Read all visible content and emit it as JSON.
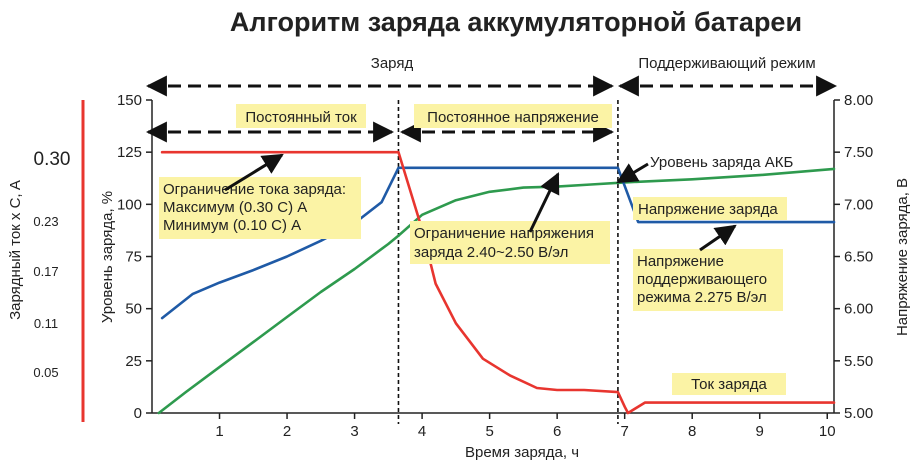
{
  "chart_data": {
    "type": "line",
    "title": "Алгоритм заряда аккумуляторной батареи",
    "xlabel": "Время заряда, ч",
    "ylabel_left": "Уровень заряда, %",
    "ylabel_far_left": "Зарядный ток x C, A",
    "ylabel_right": "Напряжение заряда, В",
    "xlim": [
      0,
      10.1
    ],
    "xticks": [
      1,
      2,
      3,
      4,
      5,
      6,
      7,
      8,
      9,
      10
    ],
    "ylim_left": [
      0,
      150
    ],
    "yticks_left": [
      0,
      25,
      50,
      75,
      100,
      125,
      150
    ],
    "ylim_right": [
      5.0,
      8.0
    ],
    "yticks_right": [
      "5.00",
      "5.50",
      "6.00",
      "6.50",
      "7.00",
      "7.50",
      "8.00"
    ],
    "current_scale_ticks": [
      "0.30",
      "0.23",
      "0.17",
      "0.11",
      "0.05"
    ],
    "current_scale_values": [
      0.3,
      0.23,
      0.17,
      0.11,
      0.05
    ],
    "phase_boundaries_h": [
      3.65,
      6.9
    ],
    "phases": {
      "charge": "Заряд",
      "float": "Поддерживающий режим",
      "constant_current": "Постоянный ток",
      "constant_voltage": "Постоянное напряжение"
    },
    "annotations": {
      "current_limit": [
        "Ограничение тока заряда:",
        "Максимум (0.30 C) A",
        "Минимум (0.10 C) A"
      ],
      "voltage_limit": [
        "Ограничение напряжения",
        "заряда 2.40~2.50 В/эл"
      ],
      "battery_level": "Уровень заряда АКБ",
      "charge_voltage": "Напряжение заряда",
      "float_voltage": [
        "Напряжение",
        "поддерживающего",
        "режима 2.275 В/эл"
      ],
      "charge_current": "Ток заряда"
    },
    "series": [
      {
        "name": "Уровень заряда АКБ",
        "color": "#2e9a4e",
        "axis": "left",
        "x": [
          0.1,
          0.5,
          1.0,
          1.5,
          2.0,
          2.5,
          3.0,
          3.5,
          3.65,
          4.0,
          4.5,
          5.0,
          5.5,
          6.0,
          6.5,
          7.0,
          8.0,
          9.0,
          10.1
        ],
        "y": [
          0,
          10,
          22,
          34,
          46,
          58,
          69,
          81,
          85,
          95,
          102,
          106,
          108,
          108.5,
          109.5,
          110.5,
          112,
          114,
          117
        ]
      },
      {
        "name": "Напряжение заряда",
        "color": "#1f5aa6",
        "axis": "right",
        "x": [
          0.15,
          0.6,
          1.0,
          1.5,
          2.0,
          2.5,
          3.0,
          3.4,
          3.65,
          6.9,
          7.2,
          10.1
        ],
        "y": [
          5.91,
          6.14,
          6.25,
          6.37,
          6.5,
          6.65,
          6.82,
          7.02,
          7.35,
          7.35,
          6.83,
          6.83
        ]
      },
      {
        "name": "Ток заряда",
        "color": "#e8352f",
        "axis": "left",
        "x": [
          0.15,
          3.65,
          4.0,
          4.2,
          4.5,
          4.9,
          5.3,
          5.7,
          6.0,
          6.4,
          6.9,
          7.0,
          7.05,
          7.3,
          10.1
        ],
        "y": [
          125,
          125,
          88,
          62,
          43,
          26,
          18,
          12,
          11,
          11,
          10,
          3,
          0,
          5,
          5
        ]
      }
    ]
  }
}
